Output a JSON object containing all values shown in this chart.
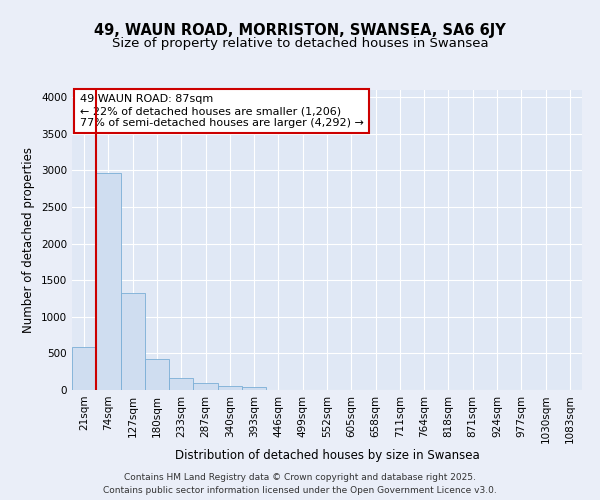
{
  "title_line1": "49, WAUN ROAD, MORRISTON, SWANSEA, SA6 6JY",
  "title_line2": "Size of property relative to detached houses in Swansea",
  "xlabel": "Distribution of detached houses by size in Swansea",
  "ylabel": "Number of detached properties",
  "bar_color": "#cfddf0",
  "bar_edge_color": "#7aaed6",
  "bin_labels": [
    "21sqm",
    "74sqm",
    "127sqm",
    "180sqm",
    "233sqm",
    "287sqm",
    "340sqm",
    "393sqm",
    "446sqm",
    "499sqm",
    "552sqm",
    "605sqm",
    "658sqm",
    "711sqm",
    "764sqm",
    "818sqm",
    "871sqm",
    "924sqm",
    "977sqm",
    "1030sqm",
    "1083sqm"
  ],
  "bar_values": [
    590,
    2970,
    1330,
    420,
    165,
    95,
    60,
    45,
    0,
    0,
    0,
    0,
    0,
    0,
    0,
    0,
    0,
    0,
    0,
    0,
    0
  ],
  "ylim": [
    0,
    4100
  ],
  "yticks": [
    0,
    500,
    1000,
    1500,
    2000,
    2500,
    3000,
    3500,
    4000
  ],
  "red_line_x": 0.5,
  "property_line_label": "49 WAUN ROAD: 87sqm",
  "annotation_line2": "← 22% of detached houses are smaller (1,206)",
  "annotation_line3": "77% of semi-detached houses are larger (4,292) →",
  "annotation_box_color": "#ffffff",
  "annotation_box_edge_color": "#cc0000",
  "red_line_color": "#cc0000",
  "footer_line1": "Contains HM Land Registry data © Crown copyright and database right 2025.",
  "footer_line2": "Contains public sector information licensed under the Open Government Licence v3.0.",
  "background_color": "#eaeef8",
  "plot_bg_color": "#e0e8f5",
  "grid_color": "#ffffff",
  "title_fontsize": 10.5,
  "subtitle_fontsize": 9.5,
  "axis_label_fontsize": 8.5,
  "tick_fontsize": 7.5,
  "annotation_fontsize": 8,
  "footer_fontsize": 6.5
}
